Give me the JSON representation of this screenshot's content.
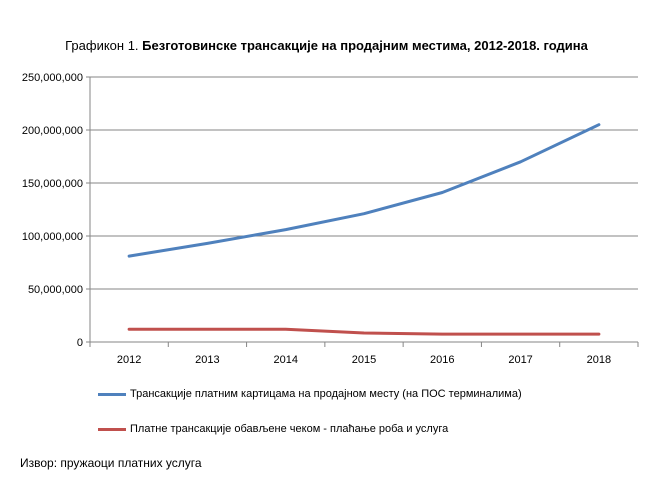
{
  "title": {
    "prefix": "Графикон 1. ",
    "main": "Безготовинске трансакције на продајним местима, 2012-2018.  година"
  },
  "source": "Извор: пружаоци платних услуга",
  "chart_data": {
    "type": "line",
    "title": "Графикон 1. Безготовинске трансакције на продајним местима, 2012-2018.  година",
    "categories": [
      "2012",
      "2013",
      "2014",
      "2015",
      "2016",
      "2017",
      "2018"
    ],
    "ylim": [
      0,
      250000000
    ],
    "yticks": [
      0,
      50000000,
      100000000,
      150000000,
      200000000,
      250000000
    ],
    "ytick_labels": [
      "0",
      "50,000,000",
      "100,000,000",
      "150,000,000",
      "200,000,000",
      "250,000,000"
    ],
    "grid": true,
    "legend_position": "bottom",
    "series": [
      {
        "name": "Трансакције платним картицама на продајном месту (на ПОС терминалима)",
        "color": "#4f81bd",
        "values": [
          81000000,
          93000000,
          106000000,
          121000000,
          141000000,
          170000000,
          205000000
        ]
      },
      {
        "name": "Платне трансакције обављене чеком  - плаћање роба и услуга",
        "color": "#c0504d",
        "values": [
          12000000,
          12000000,
          12000000,
          8500000,
          7500000,
          7500000,
          7500000
        ]
      }
    ]
  }
}
